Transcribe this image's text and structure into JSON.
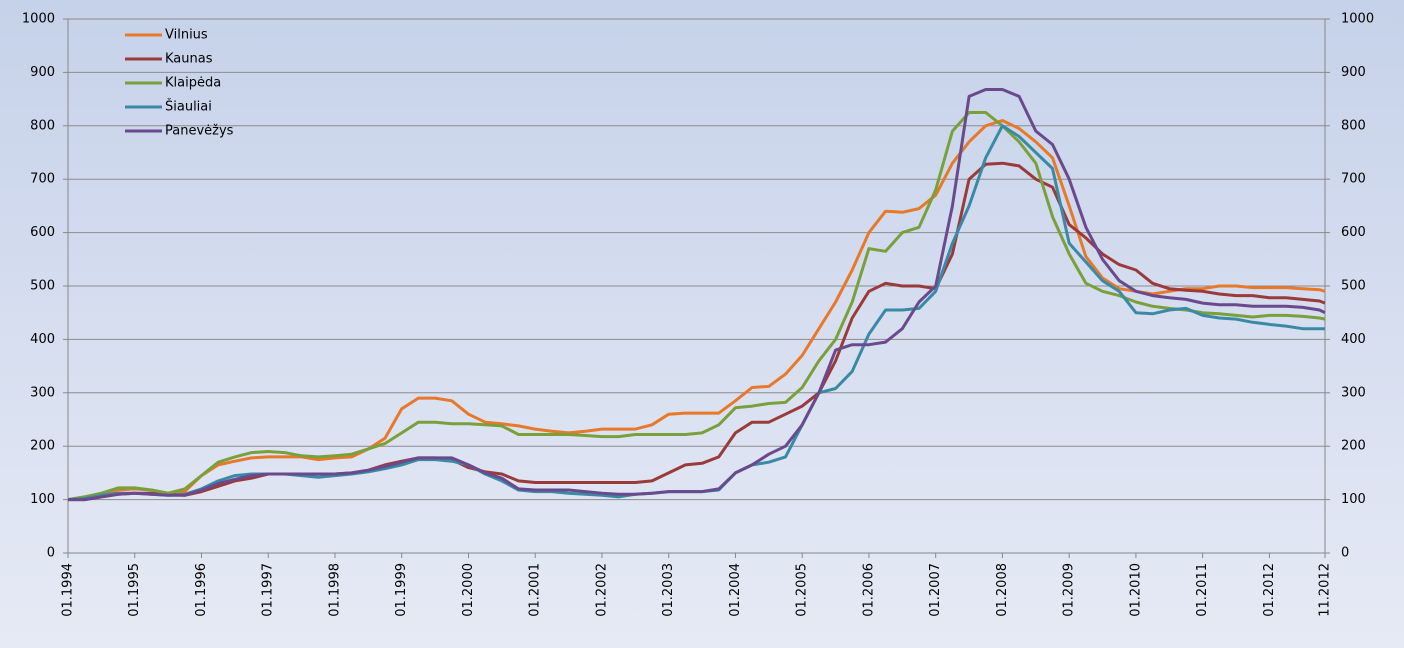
{
  "chart_data": {
    "type": "line",
    "x": [
      1994,
      1994.25,
      1994.5,
      1994.75,
      1995,
      1995.25,
      1995.5,
      1995.75,
      1996,
      1996.25,
      1996.5,
      1996.75,
      1997,
      1997.25,
      1997.5,
      1997.75,
      1998,
      1998.25,
      1998.5,
      1998.75,
      1999,
      1999.25,
      1999.5,
      1999.75,
      2000,
      2000.25,
      2000.5,
      2000.75,
      2001,
      2001.25,
      2001.5,
      2001.75,
      2002,
      2002.25,
      2002.5,
      2002.75,
      2003,
      2003.25,
      2003.5,
      2003.75,
      2004,
      2004.25,
      2004.5,
      2004.75,
      2005,
      2005.25,
      2005.5,
      2005.75,
      2006,
      2006.25,
      2006.5,
      2006.75,
      2007,
      2007.25,
      2007.5,
      2007.75,
      2008,
      2008.25,
      2008.5,
      2008.75,
      2009,
      2009.25,
      2009.5,
      2009.75,
      2010,
      2010.25,
      2010.5,
      2010.75,
      2011,
      2011.25,
      2011.5,
      2011.75,
      2012,
      2012.25,
      2012.5,
      2012.75,
      2012.833
    ],
    "series": [
      {
        "name": "Vilnius",
        "color": "#e8782a",
        "values": [
          100,
          105,
          110,
          118,
          120,
          118,
          112,
          115,
          145,
          165,
          172,
          178,
          180,
          180,
          180,
          175,
          178,
          180,
          195,
          215,
          270,
          290,
          290,
          285,
          260,
          245,
          242,
          238,
          232,
          228,
          225,
          228,
          232,
          232,
          232,
          240,
          260,
          262,
          262,
          262,
          285,
          310,
          312,
          335,
          370,
          420,
          470,
          530,
          600,
          640,
          638,
          645,
          670,
          730,
          770,
          800,
          810,
          795,
          770,
          740,
          650,
          555,
          515,
          495,
          490,
          485,
          490,
          495,
          495,
          500,
          500,
          497,
          497,
          497,
          495,
          493,
          490
        ]
      },
      {
        "name": "Kaunas",
        "color": "#9b3a3a",
        "values": [
          100,
          100,
          105,
          110,
          112,
          112,
          110,
          108,
          115,
          125,
          135,
          140,
          148,
          148,
          148,
          148,
          148,
          150,
          155,
          165,
          172,
          178,
          178,
          175,
          160,
          152,
          148,
          135,
          132,
          132,
          132,
          132,
          132,
          132,
          132,
          135,
          150,
          165,
          168,
          180,
          225,
          245,
          245,
          260,
          275,
          300,
          360,
          440,
          490,
          505,
          500,
          500,
          495,
          560,
          700,
          728,
          730,
          725,
          700,
          685,
          615,
          590,
          560,
          540,
          530,
          505,
          495,
          492,
          490,
          485,
          482,
          482,
          478,
          478,
          475,
          472,
          468
        ]
      },
      {
        "name": "Klaipėda",
        "color": "#7aa03c",
        "values": [
          100,
          105,
          112,
          122,
          122,
          118,
          112,
          120,
          145,
          170,
          180,
          188,
          190,
          188,
          182,
          180,
          182,
          185,
          195,
          205,
          225,
          245,
          245,
          242,
          242,
          240,
          238,
          222,
          222,
          222,
          222,
          220,
          218,
          218,
          222,
          222,
          222,
          222,
          225,
          240,
          272,
          275,
          280,
          282,
          310,
          360,
          400,
          470,
          570,
          565,
          600,
          610,
          680,
          790,
          825,
          825,
          800,
          770,
          730,
          630,
          560,
          505,
          490,
          482,
          470,
          462,
          458,
          455,
          450,
          448,
          445,
          442,
          445,
          445,
          443,
          440,
          438
        ]
      },
      {
        "name": "Šiauliai",
        "color": "#3a8aa6",
        "values": [
          100,
          102,
          108,
          112,
          112,
          110,
          108,
          110,
          120,
          135,
          145,
          148,
          148,
          148,
          145,
          142,
          145,
          148,
          152,
          158,
          165,
          175,
          175,
          172,
          165,
          148,
          135,
          118,
          115,
          115,
          112,
          110,
          108,
          105,
          110,
          112,
          115,
          115,
          115,
          118,
          150,
          165,
          170,
          180,
          240,
          300,
          308,
          340,
          410,
          455,
          455,
          458,
          490,
          580,
          650,
          740,
          800,
          780,
          750,
          720,
          580,
          545,
          510,
          490,
          450,
          448,
          455,
          458,
          445,
          440,
          438,
          432,
          428,
          425,
          420,
          420,
          420
        ]
      },
      {
        "name": "Panevėžys",
        "color": "#6a4a8c",
        "values": [
          100,
          100,
          105,
          110,
          112,
          110,
          108,
          108,
          118,
          130,
          138,
          145,
          148,
          148,
          148,
          148,
          148,
          150,
          155,
          162,
          170,
          178,
          178,
          178,
          165,
          150,
          140,
          120,
          118,
          118,
          118,
          115,
          112,
          110,
          110,
          112,
          115,
          115,
          115,
          120,
          150,
          165,
          185,
          200,
          240,
          300,
          380,
          390,
          390,
          395,
          420,
          470,
          500,
          650,
          855,
          868,
          868,
          855,
          790,
          765,
          700,
          610,
          550,
          510,
          490,
          482,
          478,
          475,
          468,
          465,
          465,
          462,
          462,
          462,
          460,
          455,
          450
        ]
      }
    ],
    "xlim": [
      1994,
      2012.833
    ],
    "xticks": [
      {
        "value": 1994,
        "label": "01.1994"
      },
      {
        "value": 1995,
        "label": "01.1995"
      },
      {
        "value": 1996,
        "label": "01.1996"
      },
      {
        "value": 1997,
        "label": "01.1997"
      },
      {
        "value": 1998,
        "label": "01.1998"
      },
      {
        "value": 1999,
        "label": "01.1999"
      },
      {
        "value": 2000,
        "label": "01.2000"
      },
      {
        "value": 2001,
        "label": "01.2001"
      },
      {
        "value": 2002,
        "label": "01.2002"
      },
      {
        "value": 2003,
        "label": "01.2003"
      },
      {
        "value": 2004,
        "label": "01.2004"
      },
      {
        "value": 2005,
        "label": "01.2005"
      },
      {
        "value": 2006,
        "label": "01.2006"
      },
      {
        "value": 2007,
        "label": "01.2007"
      },
      {
        "value": 2008,
        "label": "01.2008"
      },
      {
        "value": 2009,
        "label": "01.2009"
      },
      {
        "value": 2010,
        "label": "01.2010"
      },
      {
        "value": 2011,
        "label": "01.2011"
      },
      {
        "value": 2012,
        "label": "01.2012"
      },
      {
        "value": 2012.833,
        "label": "11.2012"
      }
    ],
    "ylim": [
      0,
      1000
    ],
    "yticks": [
      0,
      100,
      200,
      300,
      400,
      500,
      600,
      700,
      800,
      900,
      1000
    ],
    "grid": true,
    "legend": "upper-left"
  }
}
